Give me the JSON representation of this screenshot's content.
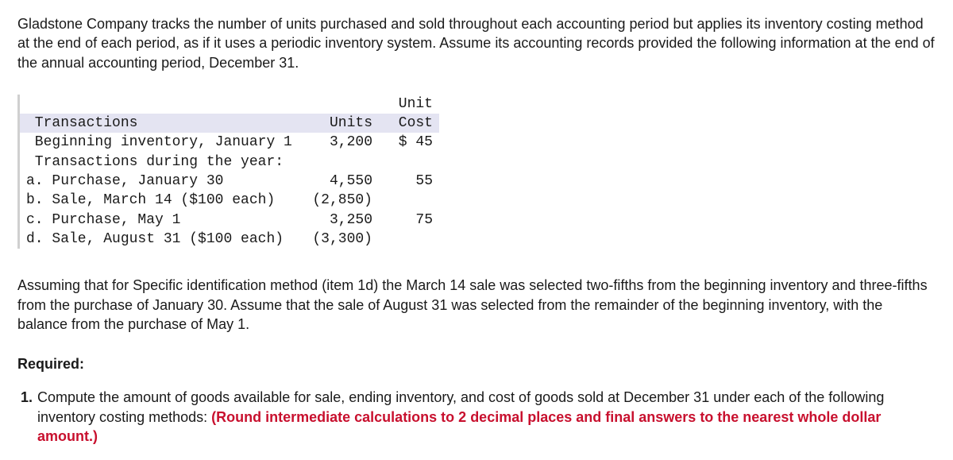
{
  "intro": "Gladstone Company tracks the number of units purchased and sold throughout each accounting period but applies its inventory costing method at the end of each period, as if it uses a periodic inventory system. Assume its accounting records provided the following information at the end of the annual accounting period, December 31.",
  "table": {
    "header": {
      "label": " Transactions",
      "units_top": "",
      "units": "Units",
      "cost_top": "Unit",
      "cost": "Cost"
    },
    "rows": [
      {
        "label": " Beginning inventory, January 1",
        "units": "3,200",
        "cost": "$ 45"
      },
      {
        "label": " Transactions during the year:",
        "units": "",
        "cost": ""
      },
      {
        "label": "a. Purchase, January 30",
        "units": "4,550",
        "cost": "55"
      },
      {
        "label": "b. Sale, March 14 ($100 each)",
        "units": "(2,850)",
        "cost": ""
      },
      {
        "label": "c. Purchase, May 1",
        "units": "3,250",
        "cost": "75"
      },
      {
        "label": "d. Sale, August 31 ($100 each)",
        "units": "(3,300)",
        "cost": ""
      }
    ]
  },
  "assumption": "Assuming that for Specific identification method (item 1d) the March 14 sale was selected two-fifths from the beginning inventory and three-fifths from the purchase of January 30. Assume that the sale of August 31 was selected from the remainder of the beginning inventory, with the balance from the purchase of May 1.",
  "required_label": "Required:",
  "requirement": {
    "num": "1.",
    "text_plain": "Compute the amount of goods available for sale, ending inventory, and cost of goods sold at December 31 under each of the following inventory costing methods: ",
    "text_red": "(Round intermediate calculations to 2 decimal places and final answers to the nearest whole dollar amount.)"
  }
}
